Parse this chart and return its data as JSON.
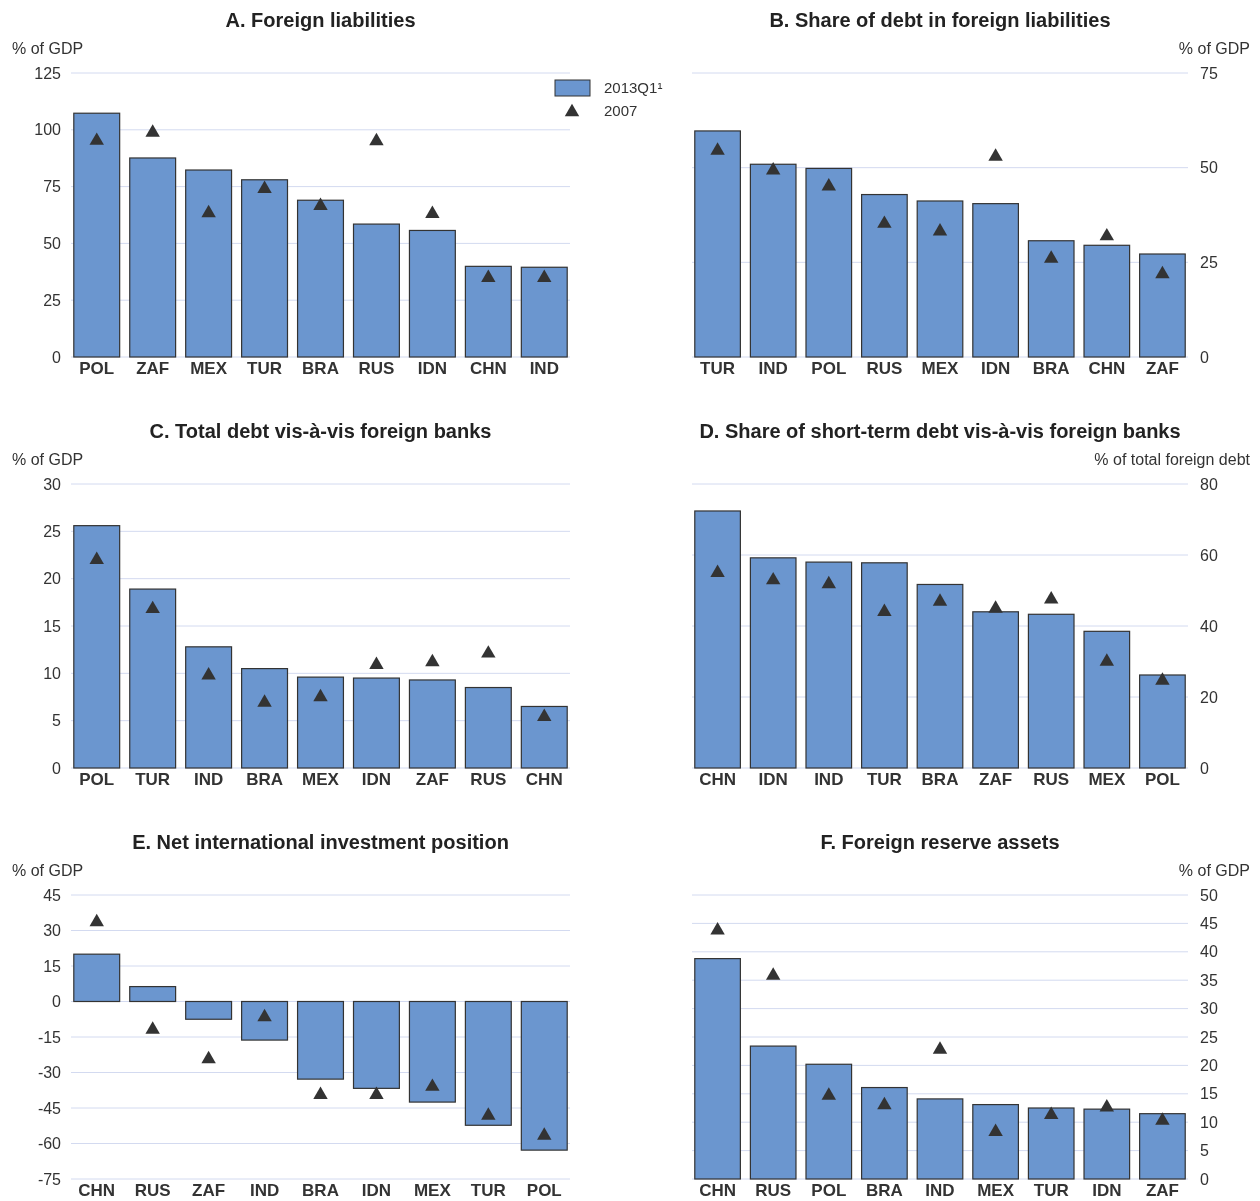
{
  "chart_data": [
    {
      "type": "bar",
      "title": "A. Foreign liabilities",
      "ylabel": "% of GDP",
      "categories": [
        "POL",
        "ZAF",
        "MEX",
        "TUR",
        "BRA",
        "RUS",
        "IDN",
        "CHN",
        "IND"
      ],
      "ylim": [
        0,
        125
      ],
      "yticks": [
        0,
        25,
        50,
        75,
        100,
        125
      ],
      "grid": "y",
      "legend": "top right",
      "marker": "triangle",
      "series": [
        {
          "name": "2013Q1¹",
          "color": "#6b96cf",
          "values": [
            107.3,
            87.6,
            82.3,
            78,
            69,
            58.5,
            55.7,
            39.9,
            39.5
          ]
        },
        {
          "name": "2007",
          "type": "scatter",
          "color": "#333333",
          "values": [
            95.2,
            98.8,
            63.3,
            74,
            66.5,
            95,
            63,
            34.8,
            34.8
          ]
        }
      ]
    },
    {
      "type": "bar",
      "title": "B. Share of debt in foreign liabilities",
      "y2label": "% of GDP",
      "categories": [
        "TUR",
        "IND",
        "POL",
        "RUS",
        "MEX",
        "IDN",
        "BRA",
        "CHN",
        "ZAF"
      ],
      "y2lim": [
        0,
        75
      ],
      "y2ticks": [
        0,
        25,
        50,
        75
      ],
      "grid": "y",
      "marker": "triangle",
      "series": [
        {
          "color": "#6b96cf",
          "axis": "y2",
          "values": [
            59.7,
            50.9,
            49.8,
            42.9,
            41.2,
            40.5,
            30.7,
            29.5,
            27.2
          ]
        },
        {
          "type": "scatter",
          "color": "#333333",
          "axis": "y2",
          "values": [
            54.5,
            49.3,
            45.1,
            35.2,
            33.2,
            52.9,
            26,
            31.9,
            21.9
          ]
        }
      ]
    },
    {
      "type": "bar",
      "title": "C. Total debt vis-à-vis foreign banks",
      "ylabel": "% of GDP",
      "categories": [
        "POL",
        "TUR",
        "IND",
        "BRA",
        "MEX",
        "IDN",
        "ZAF",
        "RUS",
        "CHN"
      ],
      "ylim": [
        0,
        30
      ],
      "yticks": [
        0,
        5,
        10,
        15,
        20,
        25,
        30
      ],
      "grid": "y",
      "marker": "triangle",
      "series": [
        {
          "color": "#6b96cf",
          "values": [
            25.6,
            18.9,
            12.8,
            10.5,
            9.6,
            9.5,
            9.3,
            8.5,
            6.5
          ]
        },
        {
          "type": "scatter",
          "color": "#333333",
          "values": [
            22,
            16.8,
            9.8,
            6.9,
            7.5,
            10.9,
            11.2,
            12.1,
            5.4
          ]
        }
      ]
    },
    {
      "type": "bar",
      "title": "D. Share of short-term debt vis-à-vis foreign banks",
      "y2label": "% of total foreign debt",
      "categories": [
        "CHN",
        "IDN",
        "IND",
        "TUR",
        "BRA",
        "ZAF",
        "RUS",
        "MEX",
        "POL"
      ],
      "y2lim": [
        0,
        80
      ],
      "y2ticks": [
        0,
        20,
        40,
        60,
        80
      ],
      "grid": "y",
      "marker": "triangle",
      "series": [
        {
          "color": "#6b96cf",
          "axis": "y2",
          "values": [
            72.4,
            59.2,
            58,
            57.8,
            51.7,
            44,
            43.3,
            38.5,
            26.2
          ]
        },
        {
          "type": "scatter",
          "color": "#333333",
          "axis": "y2",
          "values": [
            55,
            52.9,
            51.8,
            44,
            46.9,
            44.9,
            47.5,
            30,
            24.6
          ]
        }
      ]
    },
    {
      "type": "bar",
      "title": "E. Net international investment position",
      "ylabel": "% of GDP",
      "categories": [
        "CHN",
        "RUS",
        "ZAF",
        "IND",
        "BRA",
        "IDN",
        "MEX",
        "TUR",
        "POL"
      ],
      "ylim": [
        -75,
        45
      ],
      "yticks": [
        -75,
        -60,
        -45,
        -30,
        -15,
        0,
        15,
        30,
        45
      ],
      "grid": "y",
      "marker": "triangle",
      "series": [
        {
          "color": "#6b96cf",
          "values": [
            20,
            6.3,
            -7.5,
            -16.3,
            -32.8,
            -36.7,
            -42.5,
            -52.3,
            -62.8
          ]
        },
        {
          "type": "scatter",
          "color": "#333333",
          "values": [
            33.6,
            -11.9,
            -24.3,
            -6.6,
            -39.4,
            -39.4,
            -36,
            -48.2,
            -56.7
          ]
        }
      ]
    },
    {
      "type": "bar",
      "title": "F. Foreign reserve assets",
      "y2label": "% of GDP",
      "categories": [
        "CHN",
        "RUS",
        "POL",
        "BRA",
        "IND",
        "MEX",
        "TUR",
        "IDN",
        "ZAF"
      ],
      "y2lim": [
        0,
        50
      ],
      "y2ticks": [
        0,
        5,
        10,
        15,
        20,
        25,
        30,
        35,
        40,
        45,
        50
      ],
      "grid": "y",
      "marker": "triangle",
      "series": [
        {
          "color": "#6b96cf",
          "axis": "y2",
          "values": [
            38.8,
            23.4,
            20.2,
            16.1,
            14.1,
            13.1,
            12.5,
            12.3,
            11.5
          ]
        },
        {
          "type": "scatter",
          "color": "#333333",
          "axis": "y2",
          "values": [
            43.8,
            35.8,
            14.7,
            13,
            22.8,
            8.3,
            11.3,
            12.6,
            10.3
          ]
        }
      ]
    }
  ]
}
